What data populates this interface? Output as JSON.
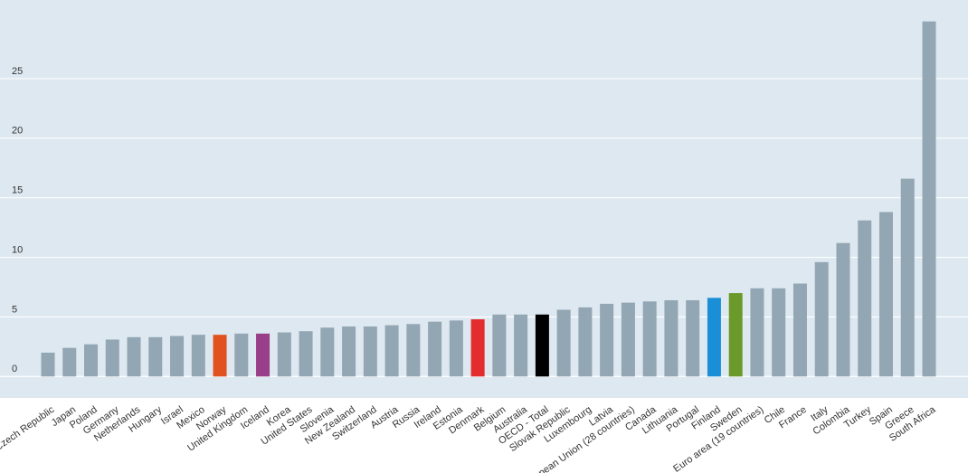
{
  "chart_data": {
    "type": "bar",
    "categories": [
      "Czech Republic",
      "Japan",
      "Poland",
      "Germany",
      "Netherlands",
      "Hungary",
      "Israel",
      "Mexico",
      "Norway",
      "United Kingdom",
      "Iceland",
      "Korea",
      "United States",
      "Slovenia",
      "New Zealand",
      "Switzerland",
      "Austria",
      "Russia",
      "Ireland",
      "Estonia",
      "Denmark",
      "Belgium",
      "Australia",
      "OECD - Total",
      "Slovak Republic",
      "Luxembourg",
      "Latvia",
      "European Union (28 countries)",
      "Canada",
      "Lithuania",
      "Portugal",
      "Finland",
      "Sweden",
      "Euro area (19 countries)",
      "Chile",
      "France",
      "Italy",
      "Colombia",
      "Turkey",
      "Spain",
      "Greece",
      "South Africa"
    ],
    "values": [
      2.0,
      2.4,
      2.7,
      3.1,
      3.3,
      3.3,
      3.4,
      3.5,
      3.5,
      3.6,
      3.6,
      3.7,
      3.8,
      4.1,
      4.2,
      4.2,
      4.3,
      4.4,
      4.6,
      4.7,
      4.8,
      5.2,
      5.2,
      5.2,
      5.6,
      5.8,
      6.1,
      6.2,
      6.3,
      6.4,
      6.4,
      6.6,
      7.0,
      7.4,
      7.4,
      7.8,
      9.6,
      11.2,
      13.1,
      13.8,
      16.6,
      29.8
    ],
    "color": "#93a6b4",
    "colors": [
      "#93a6b4",
      "#93a6b4",
      "#93a6b4",
      "#93a6b4",
      "#93a6b4",
      "#93a6b4",
      "#93a6b4",
      "#93a6b4",
      "#e0521f",
      "#93a6b4",
      "#993e88",
      "#93a6b4",
      "#93a6b4",
      "#93a6b4",
      "#93a6b4",
      "#93a6b4",
      "#93a6b4",
      "#93a6b4",
      "#93a6b4",
      "#93a6b4",
      "#e32c2e",
      "#93a6b4",
      "#93a6b4",
      "#000000",
      "#93a6b4",
      "#93a6b4",
      "#93a6b4",
      "#93a6b4",
      "#93a6b4",
      "#93a6b4",
      "#93a6b4",
      "#1a8fd8",
      "#6b9a2a",
      "#93a6b4",
      "#93a6b4",
      "#93a6b4",
      "#93a6b4",
      "#93a6b4",
      "#93a6b4",
      "#93a6b4",
      "#93a6b4",
      "#93a6b4"
    ],
    "ylim": [
      -1.8,
      31.6
    ],
    "yticks": [
      0,
      5,
      10,
      15,
      20,
      25
    ],
    "grid": true
  }
}
